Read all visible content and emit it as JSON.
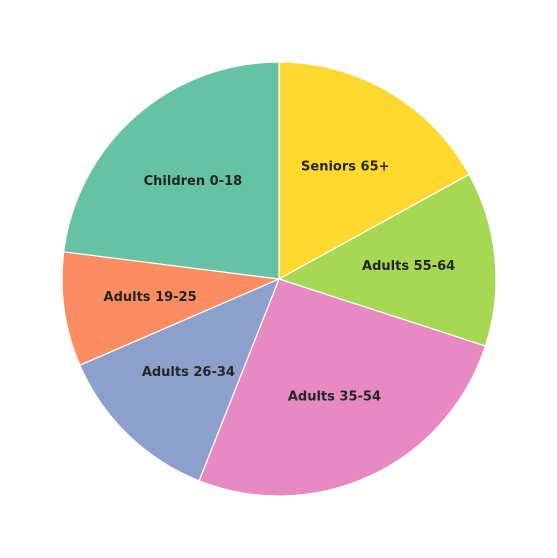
{
  "chart_data": {
    "type": "pie",
    "title": "",
    "start_angle_deg": 90,
    "direction": "clockwise",
    "legend": "none",
    "slices": [
      {
        "label": "Seniors 65+",
        "value": 17.0,
        "color": "#ffd92f"
      },
      {
        "label": "Adults 55-64",
        "value": 13.0,
        "color": "#a6d854"
      },
      {
        "label": "Adults 35-54",
        "value": 26.0,
        "color": "#e78ac3"
      },
      {
        "label": "Adults 26-34",
        "value": 12.5,
        "color": "#8da0cb"
      },
      {
        "label": "Adults 19-25",
        "value": 8.5,
        "color": "#fc8d62"
      },
      {
        "label": "Children 0-18",
        "value": 23.0,
        "color": "#66c2a5"
      }
    ]
  }
}
